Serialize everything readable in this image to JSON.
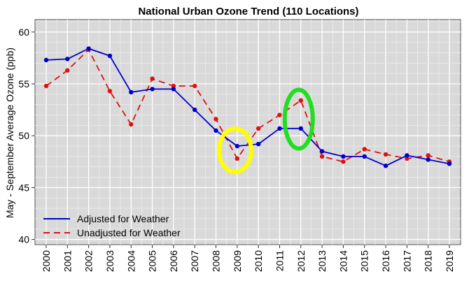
{
  "chart_data": {
    "type": "line",
    "title": "National Urban Ozone Trend (110 Locations)",
    "xlabel": "",
    "ylabel": "May - September Average Ozone (ppb)",
    "categories": [
      "2000",
      "2001",
      "2002",
      "2003",
      "2004",
      "2005",
      "2006",
      "2007",
      "2008",
      "2009",
      "2010",
      "2011",
      "2012",
      "2013",
      "2014",
      "2015",
      "2016",
      "2017",
      "2018",
      "2019"
    ],
    "ylim": [
      39.5,
      61.2
    ],
    "yticks": [
      40,
      45,
      50,
      55,
      60
    ],
    "grid": true,
    "legend_position": "bottom-left",
    "series": [
      {
        "name": "Adjusted for Weather",
        "color": "#0000cc",
        "style": "solid",
        "values": [
          57.3,
          57.4,
          58.4,
          57.7,
          54.2,
          54.5,
          54.5,
          52.5,
          50.5,
          49.0,
          49.2,
          50.7,
          50.7,
          48.5,
          48.0,
          48.0,
          47.1,
          48.1,
          47.7,
          47.3
        ]
      },
      {
        "name": "Unadjusted for Weather",
        "color": "#dd1111",
        "style": "dashed",
        "values": [
          54.8,
          56.3,
          58.3,
          54.3,
          51.1,
          55.5,
          54.8,
          54.8,
          51.6,
          47.8,
          50.7,
          52.0,
          53.4,
          48.0,
          47.5,
          48.7,
          48.2,
          47.8,
          48.1,
          47.5
        ]
      }
    ],
    "annotations": [
      {
        "type": "circle",
        "year": "2009",
        "y": 48.6,
        "color": "#ffff00"
      },
      {
        "type": "circle",
        "year": "2012",
        "y": 51.6,
        "color": "#22dd22"
      }
    ]
  }
}
